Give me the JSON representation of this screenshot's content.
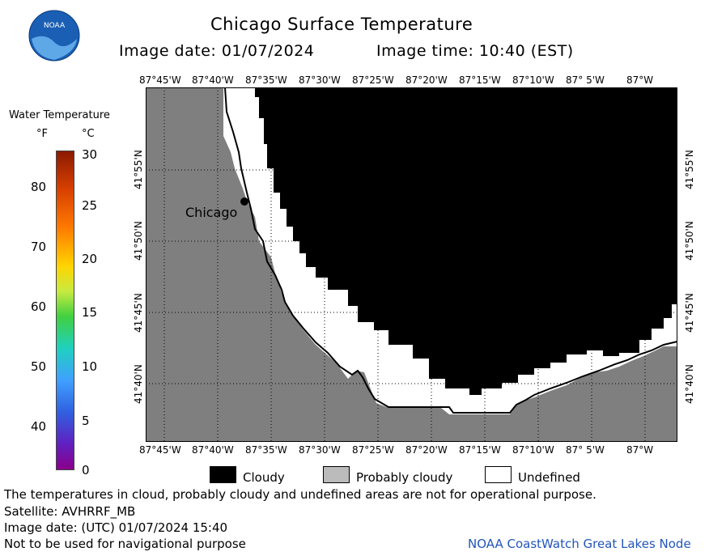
{
  "header": {
    "title": "Chicago Surface Temperature",
    "image_date": "Image date: 01/07/2024",
    "image_time": "Image time: 10:40 (EST)",
    "logo_text": "NOAA"
  },
  "legend": {
    "title": "Water Temperature",
    "unit_f": "°F",
    "unit_c": "°C",
    "f_ticks": [
      "80",
      "70",
      "60",
      "50",
      "40"
    ],
    "c_ticks": [
      "30",
      "25",
      "20",
      "15",
      "10",
      "5",
      "0"
    ]
  },
  "map": {
    "lon_labels": [
      "87°45'W",
      "87°40'W",
      "87°35'W",
      "87°30'W",
      "87°25'W",
      "87°20'W",
      "87°15'W",
      "87°10'W",
      "87° 5'W",
      "87°W"
    ],
    "lat_labels": [
      "41°55'N",
      "41°50'N",
      "41°45'N",
      "41°40'N"
    ],
    "city_label": "Chicago",
    "colors": {
      "land": "#7f7f7f",
      "cloudy": "#000000",
      "undefined": "#ffffff"
    }
  },
  "key": {
    "cloudy": "Cloudy",
    "probably_cloudy": "Probably cloudy",
    "undefined": "Undefined"
  },
  "footer": {
    "disclaimer": "The temperatures in cloud, probably cloudy and undefined areas are not for operational purpose.",
    "satellite": "Satellite: AVHRRF_MB",
    "utc_date": "Image date: (UTC) 01/07/2024  15:40",
    "nav_warning": "Not to be used for navigational purpose",
    "credit": "NOAA CoastWatch Great Lakes Node"
  }
}
